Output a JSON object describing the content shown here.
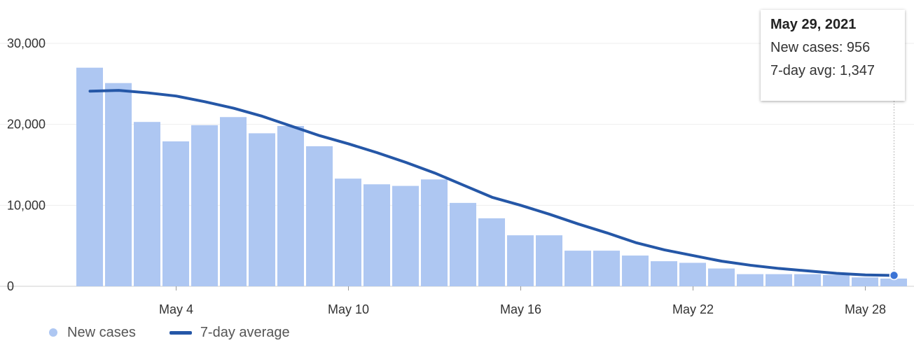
{
  "colors": {
    "bar": "#aec7f2",
    "line": "#2557a7",
    "grid": "#eeeeee",
    "axis": "#cfcfcf"
  },
  "tooltip": {
    "date": "May 29, 2021",
    "new_cases": "New cases: 956",
    "avg": "7-day avg: 1,347"
  },
  "legend": {
    "bars_label": "New cases",
    "line_label": "7-day average"
  },
  "chart_data": {
    "type": "bar",
    "y_ticks": [
      "30,000",
      "20,000",
      "10,000",
      "0"
    ],
    "y_tick_values": [
      30000,
      20000,
      10000,
      0
    ],
    "x_tick_labels": [
      "May 4",
      "May 10",
      "May 16",
      "May 22",
      "May 28"
    ],
    "ylim": [
      0,
      30000
    ],
    "grid": true,
    "legend_position": "bottom-left",
    "categories": [
      "May 1",
      "May 2",
      "May 3",
      "May 4",
      "May 5",
      "May 6",
      "May 7",
      "May 8",
      "May 9",
      "May 10",
      "May 11",
      "May 12",
      "May 13",
      "May 14",
      "May 15",
      "May 16",
      "May 17",
      "May 18",
      "May 19",
      "May 20",
      "May 21",
      "May 22",
      "May 23",
      "May 24",
      "May 25",
      "May 26",
      "May 27",
      "May 28",
      "May 29"
    ],
    "series": [
      {
        "name": "New cases",
        "type": "bar",
        "values": [
          27000,
          25100,
          20300,
          17900,
          19900,
          20900,
          18900,
          19800,
          17300,
          13300,
          12600,
          12400,
          13200,
          10300,
          8400,
          6300,
          6300,
          4400,
          4400,
          3800,
          3100,
          2900,
          2200,
          1500,
          1500,
          1500,
          1400,
          1100,
          956
        ]
      },
      {
        "name": "7-day average",
        "type": "line",
        "values": [
          24100,
          24200,
          23900,
          23500,
          22800,
          22000,
          21000,
          19800,
          18600,
          17600,
          16500,
          15300,
          14000,
          12500,
          11000,
          10000,
          8900,
          7700,
          6600,
          5400,
          4500,
          3800,
          3100,
          2600,
          2200,
          1900,
          1600,
          1400,
          1347
        ]
      }
    ]
  }
}
